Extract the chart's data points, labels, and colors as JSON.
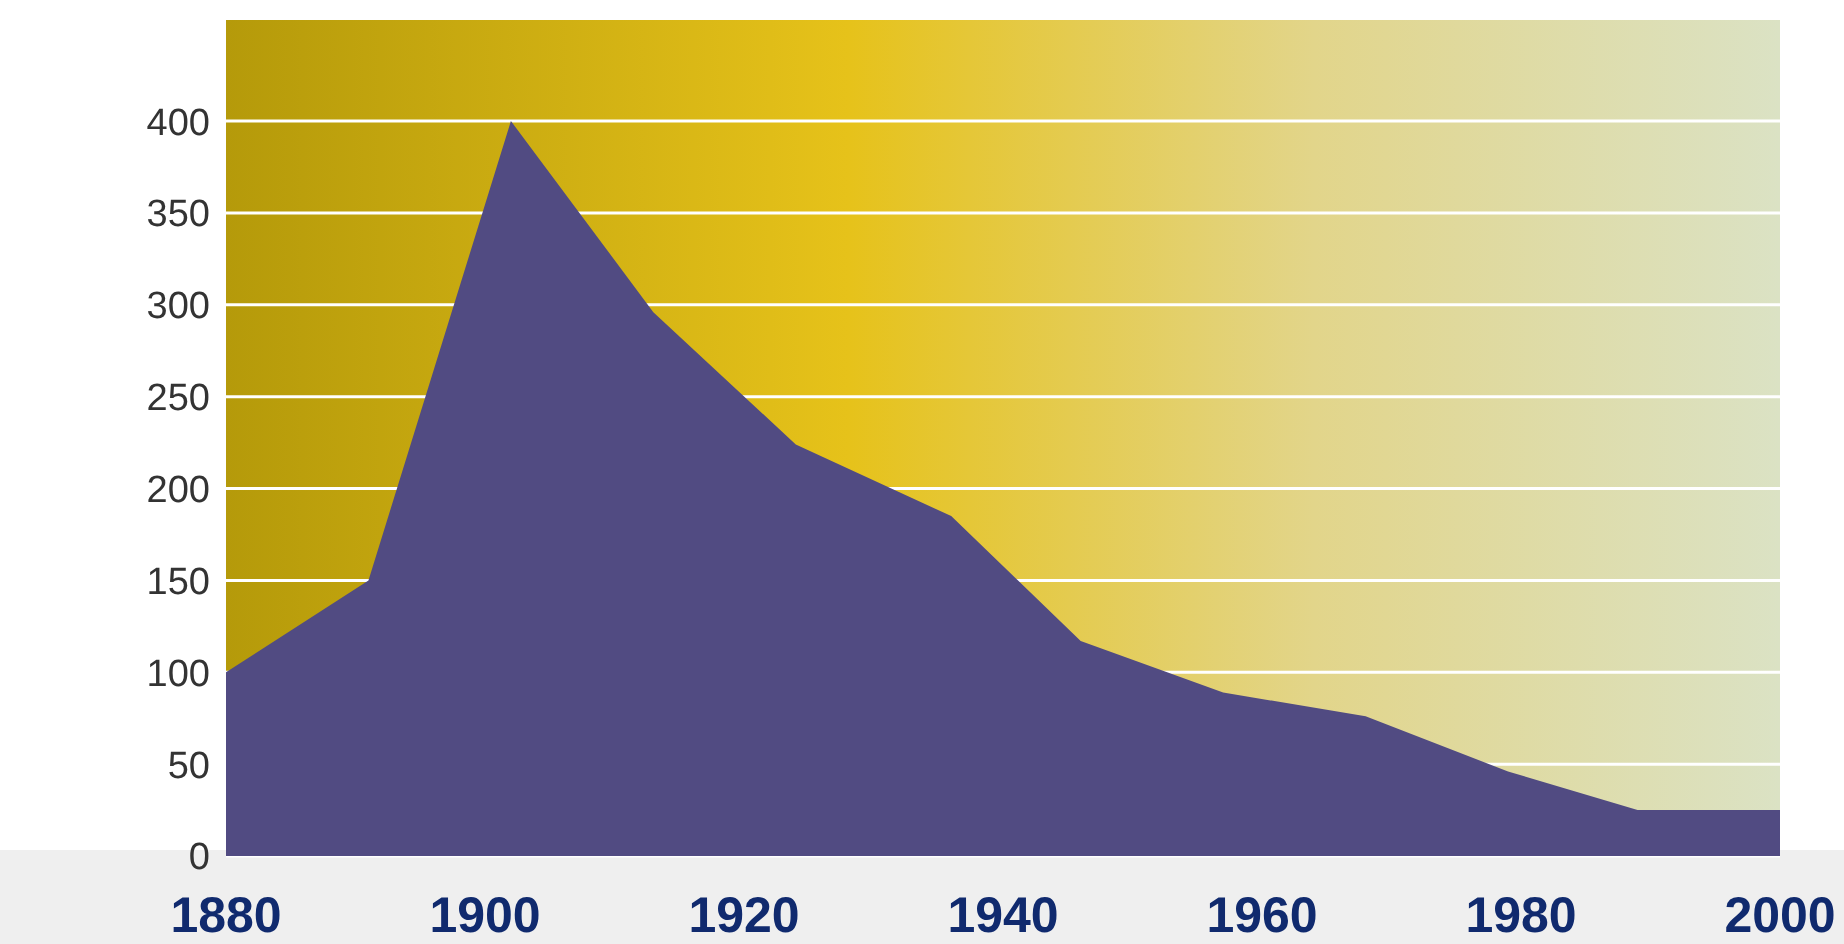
{
  "chart_data": {
    "type": "area",
    "x": [
      1880,
      1891,
      1902,
      1913,
      1924,
      1936,
      1946,
      1957,
      1968,
      1979,
      1989,
      2000
    ],
    "values": [
      100,
      150,
      400,
      296,
      224,
      185,
      117,
      89,
      76,
      46,
      25,
      25
    ],
    "color": "#514b82",
    "xlim": [
      1880,
      2000
    ],
    "xticks": [
      1880,
      1900,
      1920,
      1940,
      1960,
      1980,
      2000
    ],
    "ylim": [
      0,
      455
    ],
    "yticks": [
      0,
      50,
      100,
      150,
      200,
      250,
      300,
      350,
      400
    ],
    "grid": "y"
  }
}
